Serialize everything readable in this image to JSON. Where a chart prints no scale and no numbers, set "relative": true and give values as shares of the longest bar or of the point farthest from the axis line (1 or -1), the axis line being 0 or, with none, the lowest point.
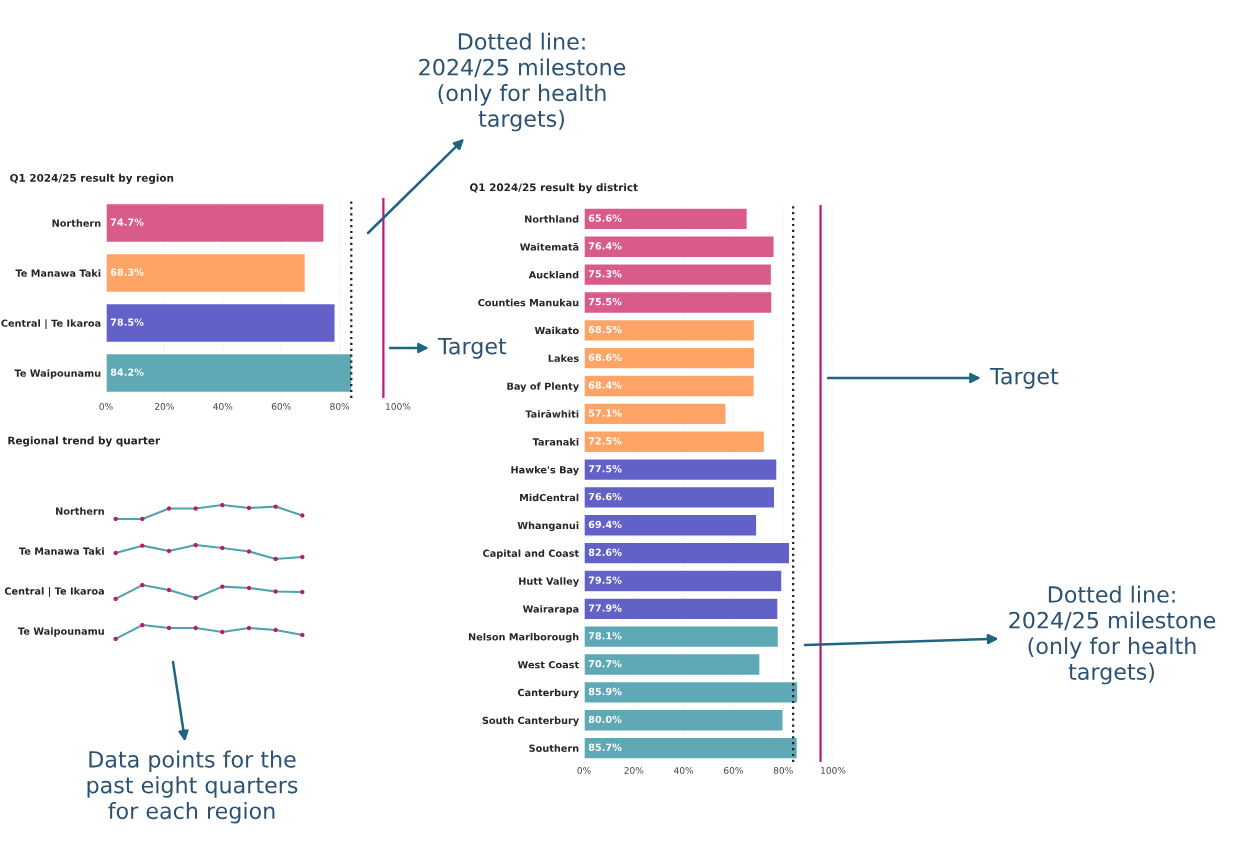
{
  "chart_data": [
    {
      "type": "bar",
      "orientation": "horizontal",
      "title": "Q1 2024/25 result by region",
      "categories": [
        "Northern",
        "Te Manawa Taki",
        "Central | Te Ikaroa",
        "Te Waipounamu"
      ],
      "values": [
        74.7,
        68.3,
        78.5,
        84.2
      ],
      "value_labels": [
        "74.7%",
        "68.3%",
        "78.5%",
        "84.2%"
      ],
      "colors": [
        "#d95b8a",
        "#fea466",
        "#6161c8",
        "#5ea9b5"
      ],
      "xlim": [
        0,
        100
      ],
      "xticks": [
        {
          "value": 0,
          "label": "0%"
        },
        {
          "value": 20,
          "label": "20%"
        },
        {
          "value": 40,
          "label": "40%"
        },
        {
          "value": 60,
          "label": "60%"
        },
        {
          "value": 80,
          "label": "80%"
        },
        {
          "value": 100,
          "label": "100%"
        }
      ],
      "grid": "x",
      "ref_lines": [
        {
          "axis": "x",
          "value": 84,
          "color": "#222222",
          "line_style": "dotted"
        },
        {
          "axis": "x",
          "value": 95,
          "color": "#c0177a",
          "line_style": "solid"
        }
      ],
      "annotations": [
        "Dotted line:\n2024/25 milestone\n(only for health\ntargets)",
        "Target"
      ]
    },
    {
      "type": "line",
      "title": "Regional trend by quarter",
      "ylabel": "Northern",
      "relative": true,
      "tick_labels": false,
      "marker": "circle",
      "categories": [
        null,
        null,
        null,
        null,
        null,
        null,
        null,
        null
      ],
      "series": [
        {
          "color": "#4fa3ad",
          "colors": [
            "#c2186a",
            "#c2186a",
            "#c2186a",
            "#c2186a",
            "#c2186a",
            "#c2186a",
            "#c2186a",
            "#c2186a"
          ],
          "values": [
            0,
            0,
            0.75,
            0.75,
            1,
            0.79,
            0.89,
            0.25
          ]
        }
      ],
      "annotations": [
        "Data points for the\npast eight quarters\nfor each region"
      ]
    },
    {
      "type": "line",
      "ylabel": "Te Manawa Taki",
      "relative": true,
      "tick_labels": false,
      "marker": "circle",
      "categories": [
        null,
        null,
        null,
        null,
        null,
        null,
        null,
        null
      ],
      "series": [
        {
          "color": "#4fa3ad",
          "colors": [
            "#c2186a",
            "#c2186a",
            "#c2186a",
            "#c2186a",
            "#c2186a",
            "#c2186a",
            "#c2186a",
            "#c2186a"
          ],
          "values": [
            0.43,
            0.96,
            0.57,
            1,
            0.79,
            0.54,
            0,
            0.14
          ]
        }
      ]
    },
    {
      "type": "line",
      "ylabel": "Central | Te Ikaroa",
      "relative": true,
      "tick_labels": false,
      "marker": "circle",
      "categories": [
        null,
        null,
        null,
        null,
        null,
        null,
        null,
        null
      ],
      "series": [
        {
          "color": "#4fa3ad",
          "colors": [
            "#c2186a",
            "#c2186a",
            "#c2186a",
            "#c2186a",
            "#c2186a",
            "#c2186a",
            "#c2186a",
            "#c2186a"
          ],
          "values": [
            0,
            1,
            0.64,
            0.07,
            0.89,
            0.79,
            0.54,
            0.5
          ]
        }
      ]
    },
    {
      "type": "line",
      "ylabel": "Te Waipounamu",
      "relative": true,
      "tick_labels": false,
      "marker": "circle",
      "categories": [
        null,
        null,
        null,
        null,
        null,
        null,
        null,
        null
      ],
      "series": [
        {
          "color": "#4fa3ad",
          "colors": [
            "#c2186a",
            "#c2186a",
            "#c2186a",
            "#c2186a",
            "#c2186a",
            "#c2186a",
            "#c2186a",
            "#c2186a"
          ],
          "values": [
            0,
            1,
            0.79,
            0.79,
            0.5,
            0.79,
            0.64,
            0.29
          ]
        }
      ]
    },
    {
      "type": "bar",
      "orientation": "horizontal",
      "title": "Q1 2024/25 result by district",
      "categories": [
        "Northland",
        "Waitematā",
        "Auckland",
        "Counties Manukau",
        "Waikato",
        "Lakes",
        "Bay of Plenty",
        "Tairāwhiti",
        "Taranaki",
        "Hawke's Bay",
        "MidCentral",
        "Whanganui",
        "Capital and Coast",
        "Hutt Valley",
        "Wairarapa",
        "Nelson Marlborough",
        "West Coast",
        "Canterbury",
        "South Canterbury",
        "Southern"
      ],
      "values": [
        65.6,
        76.4,
        75.3,
        75.5,
        68.5,
        68.6,
        68.4,
        57.1,
        72.5,
        77.5,
        76.6,
        69.4,
        82.6,
        79.5,
        77.9,
        78.1,
        70.7,
        85.9,
        80.0,
        85.7
      ],
      "value_labels": [
        "65.6%",
        "76.4%",
        "75.3%",
        "75.5%",
        "68.5%",
        "68.6%",
        "68.4%",
        "57.1%",
        "72.5%",
        "77.5%",
        "76.6%",
        "69.4%",
        "82.6%",
        "79.5%",
        "77.9%",
        "78.1%",
        "70.7%",
        "85.9%",
        "80.0%",
        "85.7%"
      ],
      "colors": [
        "#d95b8a",
        "#d95b8a",
        "#d95b8a",
        "#d95b8a",
        "#fea466",
        "#fea466",
        "#fea466",
        "#fea466",
        "#fea466",
        "#6161c8",
        "#6161c8",
        "#6161c8",
        "#6161c8",
        "#6161c8",
        "#6161c8",
        "#5ea9b5",
        "#5ea9b5",
        "#5ea9b5",
        "#5ea9b5",
        "#5ea9b5"
      ],
      "xlim": [
        0,
        100
      ],
      "xticks": [
        {
          "value": 0,
          "label": "0%"
        },
        {
          "value": 20,
          "label": "20%"
        },
        {
          "value": 40,
          "label": "40%"
        },
        {
          "value": 60,
          "label": "60%"
        },
        {
          "value": 80,
          "label": "80%"
        },
        {
          "value": 100,
          "label": "100%"
        }
      ],
      "grid": "x",
      "ref_lines": [
        {
          "axis": "x",
          "value": 84,
          "color": "#222222",
          "line_style": "dotted"
        },
        {
          "axis": "x",
          "value": 95,
          "color": "#c0177a",
          "line_style": "solid"
        }
      ],
      "annotations": [
        "Target",
        "Dotted line:\n2024/25 milestone\n(only for health\ntargets)"
      ]
    }
  ]
}
